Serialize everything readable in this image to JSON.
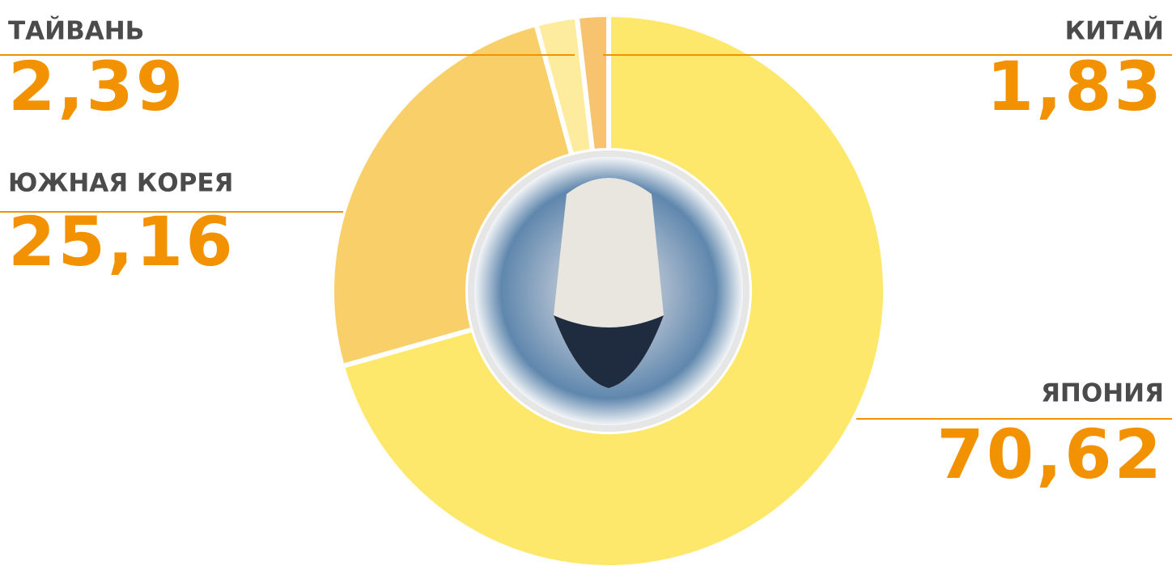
{
  "chart_data": {
    "type": "pie",
    "categories": [
      "ЯПОНИЯ",
      "ЮЖНАЯ КОРЕЯ",
      "ТАЙВАНЬ",
      "КИТАЙ"
    ],
    "values": [
      70.62,
      25.16,
      2.39,
      1.83
    ],
    "value_labels": [
      "70,62",
      "25,16",
      "2,39",
      "1,83"
    ],
    "colors": [
      "#fde86b",
      "#f9cf69",
      "#fdec9e",
      "#f7c36f"
    ]
  }
}
